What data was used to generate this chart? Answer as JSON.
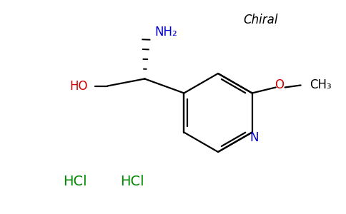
{
  "background_color": "#ffffff",
  "chiral_label": "Chiral",
  "chiral_color": "#000000",
  "chiral_fontsize": 12,
  "NH2_label": "NH₂",
  "NH2_color": "#0000cc",
  "NH2_fontsize": 12,
  "HO_label": "HO",
  "HO_color": "#cc0000",
  "HO_fontsize": 12,
  "O_label": "O",
  "O_color": "#cc0000",
  "O_fontsize": 12,
  "CH3_label": "CH₃",
  "CH3_color": "#000000",
  "CH3_fontsize": 12,
  "N_label": "N",
  "N_color": "#0000cc",
  "N_fontsize": 12,
  "HCl1_label": "HCl",
  "HCl1_color": "#008800",
  "HCl1_fontsize": 14,
  "HCl2_label": "HCl",
  "HCl2_color": "#008800",
  "HCl2_fontsize": 14,
  "bond_lw": 1.6,
  "black": "#000000"
}
